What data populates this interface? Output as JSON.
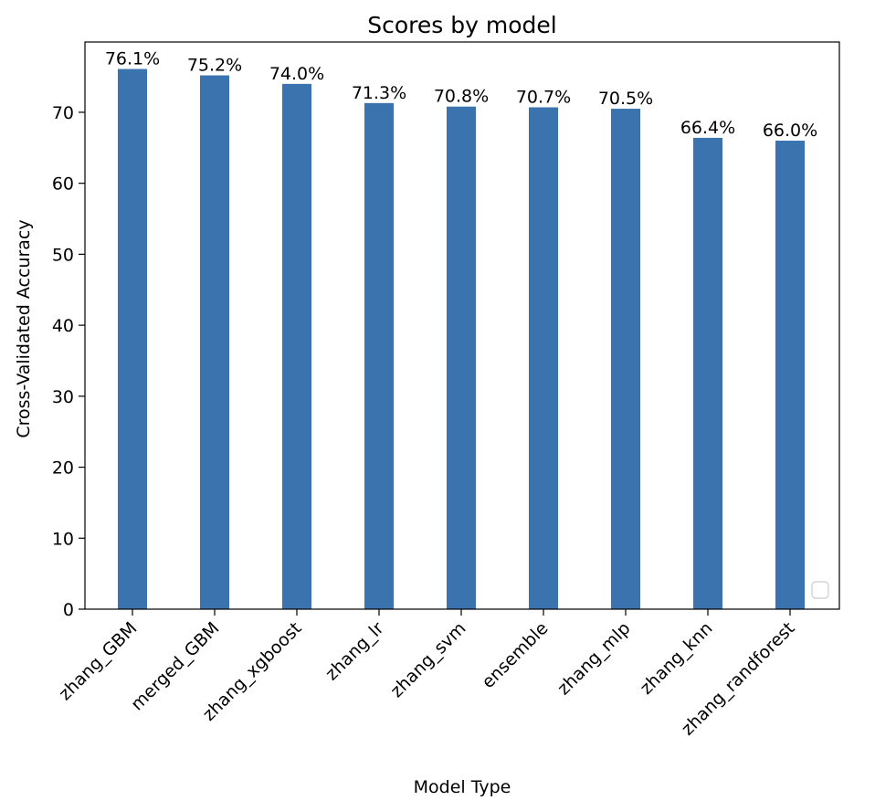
{
  "chart_data": {
    "type": "bar",
    "title": "Scores by model",
    "xlabel": "Model Type",
    "ylabel": "Cross-Validated Accuracy",
    "categories": [
      "zhang_GBM",
      "merged_GBM",
      "zhang_xgboost",
      "zhang_lr",
      "zhang_svm",
      "ensemble",
      "zhang_mlp",
      "zhang_knn",
      "zhang_randforest"
    ],
    "values": [
      76.1,
      75.2,
      74.0,
      71.3,
      70.8,
      70.7,
      70.5,
      66.4,
      66.0
    ],
    "data_labels": [
      "76.1%",
      "75.2%",
      "74.0%",
      "71.3%",
      "70.8%",
      "70.7%",
      "70.5%",
      "66.4%",
      "66.0%"
    ],
    "yticks": [
      0,
      10,
      20,
      30,
      40,
      50,
      60,
      70
    ],
    "ylim": [
      0,
      79.9
    ],
    "grid": false,
    "legend": {
      "placement": "bottom-right",
      "entries": []
    },
    "colors": {
      "bar": "#3a73ae",
      "axis": "#000000",
      "background": "#ffffff"
    }
  }
}
